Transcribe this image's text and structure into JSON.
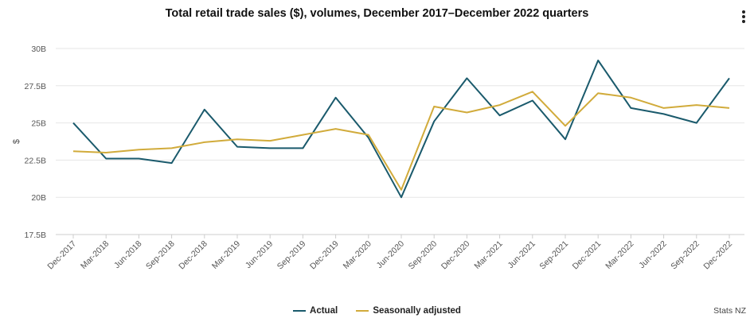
{
  "chart_data": {
    "type": "line",
    "title": "Total retail trade sales ($), volumes, December 2017–December 2022 quarters",
    "xlabel": "",
    "ylabel": "$",
    "ylim": [
      17.5,
      30
    ],
    "yticks": [
      17.5,
      20,
      22.5,
      25,
      27.5,
      30
    ],
    "ytick_labels": [
      "17.5B",
      "20B",
      "22.5B",
      "25B",
      "27.5B",
      "30B"
    ],
    "categories": [
      "Dec-2017",
      "Mar-2018",
      "Jun-2018",
      "Sep-2018",
      "Dec-2018",
      "Mar-2019",
      "Jun-2019",
      "Sep-2019",
      "Dec-2019",
      "Mar-2020",
      "Jun-2020",
      "Sep-2020",
      "Dec-2020",
      "Mar-2021",
      "Jun-2021",
      "Sep-2021",
      "Dec-2021",
      "Mar-2022",
      "Jun-2022",
      "Sep-2022",
      "Dec-2022"
    ],
    "series": [
      {
        "name": "Actual",
        "color": "#1a5a6c",
        "values": [
          25.0,
          22.6,
          22.6,
          22.3,
          25.9,
          23.4,
          23.3,
          23.3,
          26.7,
          24.0,
          20.0,
          25.1,
          28.0,
          25.5,
          26.5,
          23.9,
          29.2,
          26.0,
          25.6,
          25.0,
          28.0
        ]
      },
      {
        "name": "Seasonally adjusted",
        "color": "#d1ab3b",
        "values": [
          23.1,
          23.0,
          23.2,
          23.3,
          23.7,
          23.9,
          23.8,
          24.2,
          24.6,
          24.2,
          20.5,
          26.1,
          25.7,
          26.2,
          27.1,
          24.8,
          27.0,
          26.7,
          26.0,
          26.2,
          26.0
        ]
      }
    ],
    "grid": true,
    "legend_position": "bottom-center"
  },
  "source_credit": "Stats NZ",
  "menu": {
    "icon": "more-vertical-icon"
  }
}
